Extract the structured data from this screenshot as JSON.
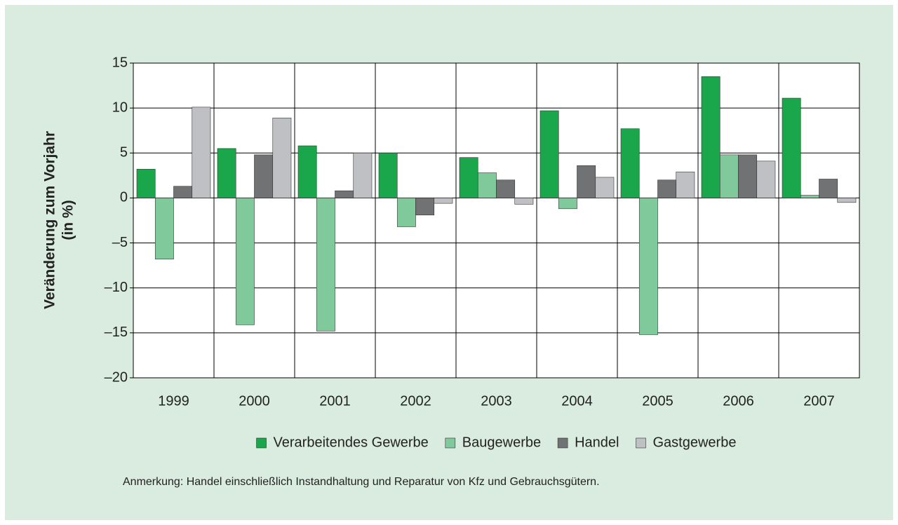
{
  "chart_data": {
    "type": "bar",
    "y_label": [
      "Veränderung zum Vorjahr",
      "(in %)"
    ],
    "categories": [
      "1999",
      "2000",
      "2001",
      "2002",
      "2003",
      "2004",
      "2005",
      "2006",
      "2007"
    ],
    "series": [
      {
        "name": "Verarbeitendes Gewerbe",
        "color": "#1aa64a",
        "values": [
          3.2,
          5.5,
          5.8,
          5.0,
          4.5,
          9.7,
          7.7,
          13.5,
          11.1
        ]
      },
      {
        "name": "Baugewerbe",
        "color": "#80c99b",
        "values": [
          -6.8,
          -14.1,
          -14.8,
          -3.2,
          2.8,
          -1.2,
          -15.2,
          4.8,
          0.3
        ]
      },
      {
        "name": "Handel",
        "color": "#717274",
        "values": [
          1.3,
          4.8,
          0.8,
          -1.9,
          2.0,
          3.6,
          2.0,
          4.8,
          2.1
        ]
      },
      {
        "name": "Gastgewerbe",
        "color": "#bfc0c4",
        "values": [
          10.1,
          8.9,
          5.0,
          -0.6,
          -0.7,
          2.3,
          2.9,
          4.1,
          -0.5
        ]
      }
    ],
    "ylim": [
      -20,
      15
    ],
    "yticks": [
      {
        "value": -20,
        "label": "–20"
      },
      {
        "value": -15,
        "label": "–15"
      },
      {
        "value": -10,
        "label": "–10"
      },
      {
        "value": -5,
        "label": "–5"
      },
      0,
      5,
      10,
      15
    ],
    "grid": true,
    "legend": "bottom",
    "note": "Anmerkung: Handel einschließlich Instandhaltung und Reparatur von Kfz und Gebrauchsgütern."
  }
}
